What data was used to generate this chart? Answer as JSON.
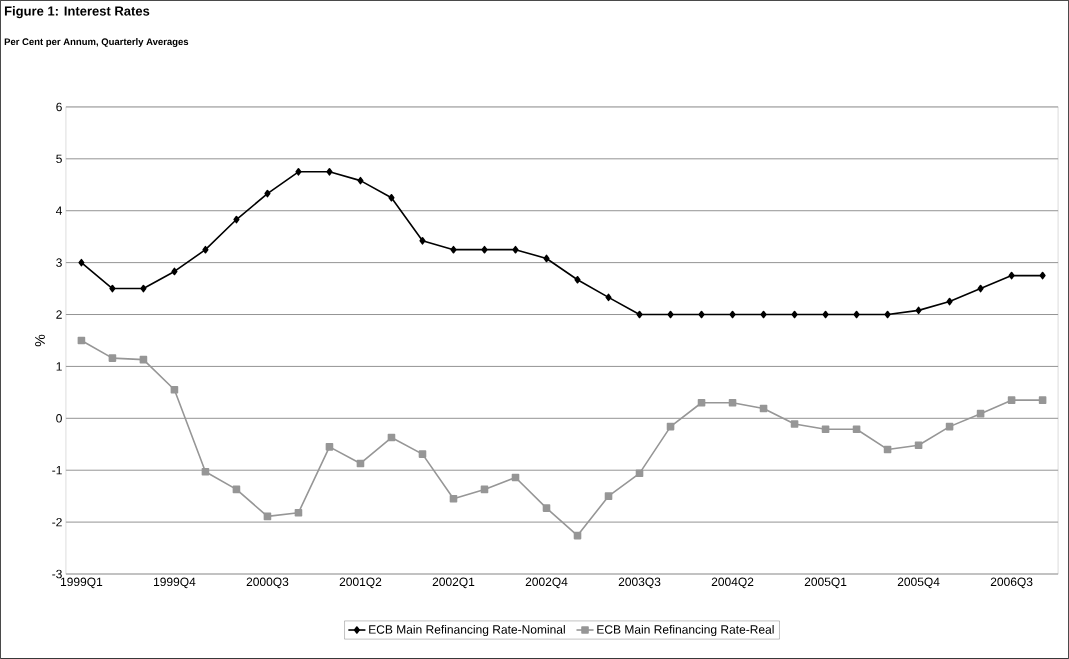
{
  "chart_data": {
    "type": "line",
    "title": "Figure 1: Interest Rates",
    "subtitle": "Per Cent per Annum, Quarterly Averages",
    "ylabel": "%",
    "categories": [
      "1999Q1",
      null,
      null,
      "1999Q4",
      null,
      null,
      "2000Q3",
      null,
      null,
      "2001Q2",
      null,
      null,
      "2002Q1",
      null,
      null,
      "2002Q4",
      null,
      null,
      "2003Q3",
      null,
      null,
      "2004Q2",
      null,
      null,
      "2005Q1",
      null,
      null,
      "2005Q4",
      null,
      null,
      "2006Q3",
      null
    ],
    "series": [
      {
        "name": "ECB Main Refinancing Rate-Nominal",
        "color": "#000000",
        "marker": "diamond",
        "values": [
          3.0,
          2.5,
          2.5,
          2.83,
          3.25,
          3.83,
          4.33,
          4.75,
          4.75,
          4.58,
          4.25,
          3.42,
          3.25,
          3.25,
          3.25,
          3.08,
          2.67,
          2.33,
          2.0,
          2.0,
          2.0,
          2.0,
          2.0,
          2.0,
          2.0,
          2.0,
          2.0,
          2.08,
          2.25,
          2.5,
          2.75,
          2.75
        ]
      },
      {
        "name": "ECB Main Refinancing Rate-Real",
        "color": "#969696",
        "marker": "square",
        "values": [
          1.5,
          1.16,
          1.13,
          0.55,
          -1.03,
          -1.37,
          -1.89,
          -1.82,
          -0.55,
          -0.87,
          -0.37,
          -0.69,
          -1.55,
          -1.37,
          -1.14,
          -1.73,
          -2.26,
          -1.5,
          -1.06,
          -0.16,
          0.3,
          0.3,
          0.19,
          -0.11,
          -0.21,
          -0.21,
          -0.6,
          -0.52,
          -0.16,
          0.09,
          0.35,
          0.35
        ]
      }
    ],
    "ylim": [
      -3,
      6
    ],
    "yticks": [
      -3,
      -2,
      -1,
      0,
      1,
      2,
      3,
      4,
      5,
      6
    ],
    "grid": "y",
    "legend": "bottom"
  }
}
